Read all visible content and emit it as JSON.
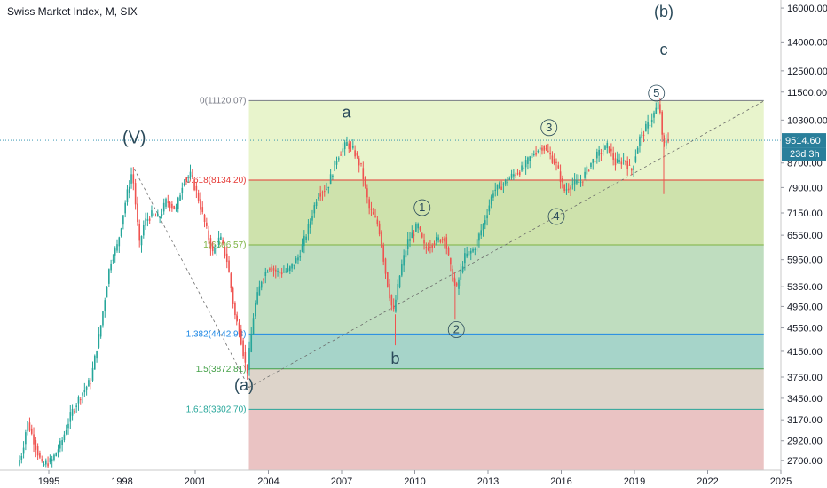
{
  "header": {
    "title": "Swiss Market Index, M, SIX"
  },
  "price_tag": {
    "value": "9514.60",
    "countdown": "23d 3h"
  },
  "colors": {
    "up": "#26a69a",
    "down": "#ef5350",
    "fib_zone_top": "#e6f3c7",
    "fib_zone_mid": "#c9dfa3",
    "fib_zone_green": "#b8d9b8",
    "fib_zone_teal": "#9ccfc3",
    "fib_zone_tan": "#d9cfc4",
    "fib_zone_pink": "#e8bcbc",
    "price_line": "#1e88a8"
  },
  "chart_data": {
    "type": "candlestick",
    "title": "Swiss Market Index, M, SIX",
    "x_ticks": [
      "1995",
      "1998",
      "2001",
      "2004",
      "2007",
      "2010",
      "2013",
      "2016",
      "2019",
      "2022",
      "2025"
    ],
    "y_ticks": [
      2700,
      2920,
      3170,
      3450,
      3750,
      4150,
      4550,
      4950,
      5350,
      5950,
      6550,
      7150,
      7900,
      8700,
      10300,
      11500,
      12500,
      14000,
      16000
    ],
    "y_scale": "log",
    "ylim": [
      2600,
      16400
    ],
    "xlim": [
      1993.0,
      2025.0
    ],
    "last_price": 9514.6,
    "fib_levels": [
      {
        "label": "0(11120.07)",
        "value": 11120.07,
        "color": "#787b86"
      },
      {
        "label": "0.618(8134.20)",
        "value": 8134.2,
        "color": "#e53935"
      },
      {
        "label": "1(6306.57)",
        "value": 6306.57,
        "color": "#7cb342"
      },
      {
        "label": "1.382(4442.93)",
        "value": 4442.93,
        "color": "#1e88e5"
      },
      {
        "label": "1.5(3872.81)",
        "value": 3872.81,
        "color": "#43a047"
      },
      {
        "label": "1.618(3302.70)",
        "value": 3302.7,
        "color": "#26a69a"
      }
    ],
    "fib_start_x": 2003.2,
    "fib_end_x": 2024.3,
    "wave_labels": [
      {
        "text": "(V)",
        "x": 1998.5,
        "y": 9400,
        "size": 20
      },
      {
        "text": "a",
        "x": 2007.2,
        "y": 10400,
        "size": 18
      },
      {
        "text": "b",
        "x": 2009.2,
        "y": 3950,
        "size": 18
      },
      {
        "text": "(a)",
        "x": 2003.0,
        "y": 3560,
        "size": 18
      },
      {
        "text": "(b)",
        "x": 2020.2,
        "y": 15450,
        "size": 18
      },
      {
        "text": "c",
        "x": 2020.2,
        "y": 13300,
        "size": 18
      }
    ],
    "circled_labels": [
      {
        "text": "1",
        "x": 2010.3,
        "y": 7300
      },
      {
        "text": "2",
        "x": 2011.7,
        "y": 4520
      },
      {
        "text": "3",
        "x": 2015.5,
        "y": 10000
      },
      {
        "text": "4",
        "x": 2015.8,
        "y": 7050
      },
      {
        "text": "5",
        "x": 2019.9,
        "y": 11450
      }
    ],
    "trendlines": [
      {
        "from": [
          1998.5,
          8500
        ],
        "to": [
          2003.2,
          3600
        ]
      },
      {
        "from": [
          2003.2,
          3600
        ],
        "to": [
          2024.3,
          11100
        ]
      }
    ],
    "price_path": [
      [
        1993.8,
        2650
      ],
      [
        1994.0,
        2800
      ],
      [
        1994.2,
        3150
      ],
      [
        1994.5,
        2900
      ],
      [
        1994.8,
        2650
      ],
      [
        1995.2,
        2700
      ],
      [
        1995.6,
        2900
      ],
      [
        1996.0,
        3250
      ],
      [
        1996.4,
        3500
      ],
      [
        1996.8,
        3700
      ],
      [
        1997.2,
        4550
      ],
      [
        1997.6,
        5900
      ],
      [
        1997.9,
        6300
      ],
      [
        1998.2,
        7400
      ],
      [
        1998.5,
        8450
      ],
      [
        1998.8,
        6300
      ],
      [
        1999.0,
        6900
      ],
      [
        1999.3,
        7100
      ],
      [
        1999.6,
        7000
      ],
      [
        1999.9,
        7500
      ],
      [
        2000.3,
        7250
      ],
      [
        2000.6,
        8150
      ],
      [
        2000.9,
        8300
      ],
      [
        2001.2,
        7600
      ],
      [
        2001.5,
        6800
      ],
      [
        2001.8,
        6100
      ],
      [
        2002.1,
        6500
      ],
      [
        2002.4,
        5900
      ],
      [
        2002.7,
        4800
      ],
      [
        2002.9,
        4500
      ],
      [
        2003.2,
        3800
      ],
      [
        2003.5,
        4900
      ],
      [
        2003.8,
        5500
      ],
      [
        2004.1,
        5800
      ],
      [
        2004.5,
        5650
      ],
      [
        2004.9,
        5700
      ],
      [
        2005.3,
        6000
      ],
      [
        2005.7,
        6700
      ],
      [
        2006.1,
        7700
      ],
      [
        2006.5,
        7900
      ],
      [
        2006.9,
        8900
      ],
      [
        2007.3,
        9400
      ],
      [
        2007.6,
        9100
      ],
      [
        2007.9,
        8500
      ],
      [
        2008.2,
        7300
      ],
      [
        2008.6,
        6800
      ],
      [
        2008.9,
        5600
      ],
      [
        2009.2,
        4800
      ],
      [
        2009.5,
        5700
      ],
      [
        2009.8,
        6400
      ],
      [
        2010.2,
        6800
      ],
      [
        2010.5,
        6200
      ],
      [
        2010.9,
        6400
      ],
      [
        2011.3,
        6500
      ],
      [
        2011.6,
        5600
      ],
      [
        2011.8,
        5300
      ],
      [
        2012.1,
        6000
      ],
      [
        2012.5,
        6200
      ],
      [
        2012.9,
        6850
      ],
      [
        2013.3,
        7800
      ],
      [
        2013.7,
        8000
      ],
      [
        2014.1,
        8300
      ],
      [
        2014.5,
        8500
      ],
      [
        2014.9,
        9000
      ],
      [
        2015.3,
        9300
      ],
      [
        2015.6,
        9000
      ],
      [
        2015.9,
        8600
      ],
      [
        2016.2,
        7800
      ],
      [
        2016.5,
        8000
      ],
      [
        2016.9,
        8100
      ],
      [
        2017.3,
        8700
      ],
      [
        2017.7,
        9100
      ],
      [
        2018.0,
        9300
      ],
      [
        2018.3,
        8700
      ],
      [
        2018.7,
        8800
      ],
      [
        2018.95,
        8400
      ],
      [
        2019.3,
        9600
      ],
      [
        2019.7,
        10200
      ],
      [
        2019.95,
        10700
      ],
      [
        2020.1,
        11100
      ],
      [
        2020.25,
        9200
      ],
      [
        2020.4,
        9600
      ]
    ]
  }
}
